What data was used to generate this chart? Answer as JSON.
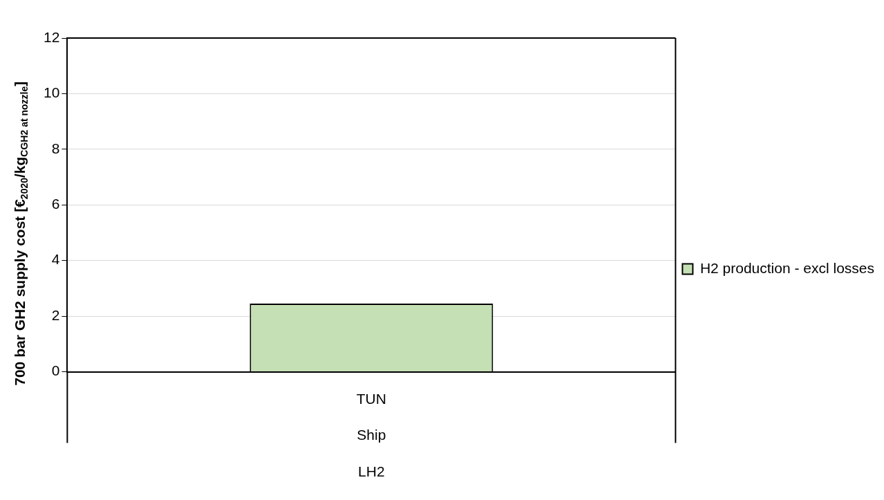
{
  "chart_data": {
    "type": "bar",
    "ylabel": "700 bar GH2 supply cost [€$_{2020}$/kg$_{CGH2 at nozzle}$]",
    "categories": [
      "TUN\nShip\nLH2"
    ],
    "series": [
      {
        "name": "H2 production - excl losses",
        "color": "#c5e0b4",
        "values": [
          2.45
        ]
      }
    ],
    "ylim": [
      0,
      12
    ],
    "yticks": [
      0,
      2,
      4,
      6,
      8,
      10,
      12
    ],
    "grid": "y",
    "legend": "right"
  }
}
